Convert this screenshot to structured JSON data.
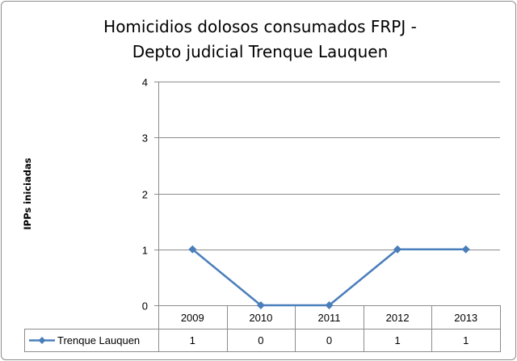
{
  "chart_data": {
    "type": "line",
    "title_lines": [
      "Homicidios dolosos consumados FRPJ -",
      "Depto judicial Trenque Lauquen"
    ],
    "ylabel": "IPPs iniciadas",
    "xlabel": "",
    "categories": [
      "2009",
      "2010",
      "2011",
      "2012",
      "2013"
    ],
    "series": [
      {
        "name": "Trenque Lauquen",
        "values": [
          1,
          0,
          0,
          1,
          1
        ],
        "color": "#4a7ebb"
      }
    ],
    "ylim": [
      0,
      4
    ],
    "yticks": [
      "0",
      "1",
      "2",
      "3",
      "4"
    ],
    "grid": true,
    "data_table": true
  }
}
